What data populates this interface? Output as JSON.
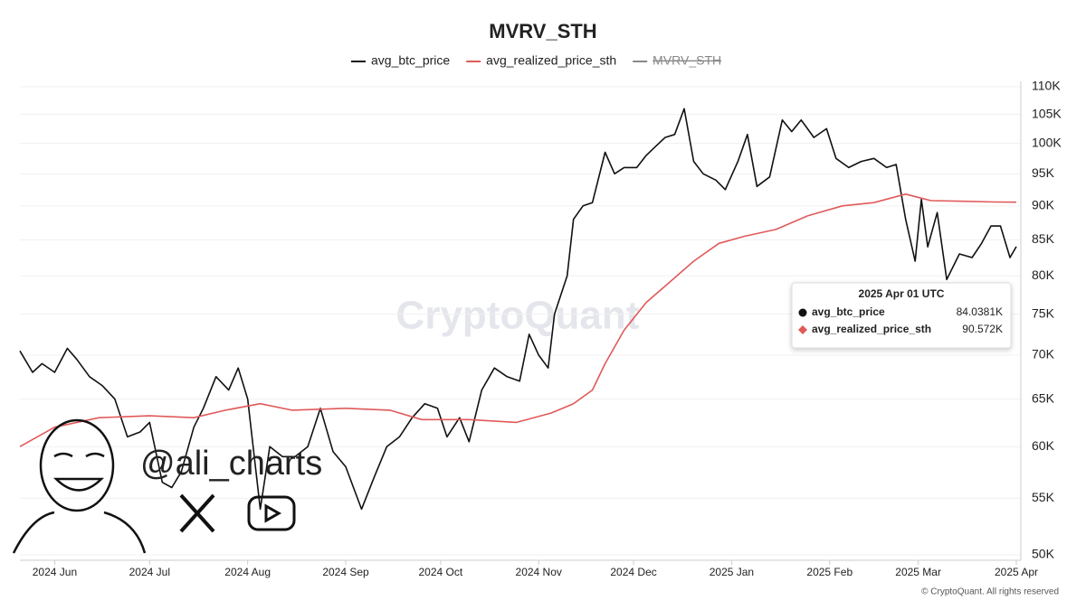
{
  "chart_data": {
    "type": "line",
    "title": "MVRV_STH",
    "watermark": "CryptoQuant",
    "handle": "@ali_charts",
    "footer": "© CryptoQuant. All rights reserved",
    "log_y": true,
    "grid": true,
    "xlim": [
      "2024-05-21",
      "2025-04-01"
    ],
    "xticks": [
      {
        "value": "2024-06-01",
        "label": "2024 Jun"
      },
      {
        "value": "2024-07-01",
        "label": "2024 Jul"
      },
      {
        "value": "2024-08-01",
        "label": "2024 Aug"
      },
      {
        "value": "2024-09-01",
        "label": "2024 Sep"
      },
      {
        "value": "2024-10-01",
        "label": "2024 Oct"
      },
      {
        "value": "2024-11-01",
        "label": "2024 Nov"
      },
      {
        "value": "2024-12-01",
        "label": "2024 Dec"
      },
      {
        "value": "2025-01-01",
        "label": "2025 Jan"
      },
      {
        "value": "2025-02-01",
        "label": "2025 Feb"
      },
      {
        "value": "2025-03-01",
        "label": "2025 Mar"
      },
      {
        "value": "2025-04-01",
        "label": "2025 Apr"
      }
    ],
    "ylim": [
      50000,
      110000
    ],
    "yticks": [
      {
        "value": 50000,
        "label": "50K"
      },
      {
        "value": 55000,
        "label": "55K"
      },
      {
        "value": 60000,
        "label": "60K"
      },
      {
        "value": 65000,
        "label": "65K"
      },
      {
        "value": 70000,
        "label": "70K"
      },
      {
        "value": 75000,
        "label": "75K"
      },
      {
        "value": 80000,
        "label": "80K"
      },
      {
        "value": 85000,
        "label": "85K"
      },
      {
        "value": 90000,
        "label": "90K"
      },
      {
        "value": 95000,
        "label": "95K"
      },
      {
        "value": 100000,
        "label": "100K"
      },
      {
        "value": 105000,
        "label": "105K"
      },
      {
        "value": 110000,
        "label": "110K"
      }
    ],
    "series": [
      {
        "name": "avg_btc_price",
        "color": "#111111",
        "x": [
          "2024-05-21",
          "2024-05-25",
          "2024-05-28",
          "2024-06-01",
          "2024-06-05",
          "2024-06-08",
          "2024-06-12",
          "2024-06-16",
          "2024-06-20",
          "2024-06-24",
          "2024-06-28",
          "2024-07-01",
          "2024-07-05",
          "2024-07-08",
          "2024-07-11",
          "2024-07-15",
          "2024-07-18",
          "2024-07-22",
          "2024-07-26",
          "2024-07-29",
          "2024-08-01",
          "2024-08-05",
          "2024-08-08",
          "2024-08-12",
          "2024-08-16",
          "2024-08-20",
          "2024-08-24",
          "2024-08-28",
          "2024-09-01",
          "2024-09-06",
          "2024-09-10",
          "2024-09-14",
          "2024-09-18",
          "2024-09-22",
          "2024-09-26",
          "2024-09-30",
          "2024-10-03",
          "2024-10-07",
          "2024-10-10",
          "2024-10-14",
          "2024-10-18",
          "2024-10-22",
          "2024-10-26",
          "2024-10-29",
          "2024-11-01",
          "2024-11-04",
          "2024-11-06",
          "2024-11-10",
          "2024-11-12",
          "2024-11-15",
          "2024-11-18",
          "2024-11-22",
          "2024-11-25",
          "2024-11-28",
          "2024-12-02",
          "2024-12-05",
          "2024-12-08",
          "2024-12-11",
          "2024-12-14",
          "2024-12-17",
          "2024-12-20",
          "2024-12-23",
          "2024-12-27",
          "2024-12-30",
          "2025-01-03",
          "2025-01-06",
          "2025-01-09",
          "2025-01-13",
          "2025-01-17",
          "2025-01-20",
          "2025-01-23",
          "2025-01-27",
          "2025-01-31",
          "2025-02-03",
          "2025-02-07",
          "2025-02-11",
          "2025-02-15",
          "2025-02-19",
          "2025-02-22",
          "2025-02-25",
          "2025-02-28",
          "2025-03-02",
          "2025-03-04",
          "2025-03-07",
          "2025-03-10",
          "2025-03-14",
          "2025-03-18",
          "2025-03-21",
          "2025-03-24",
          "2025-03-27",
          "2025-03-30",
          "2025-04-01"
        ],
        "values": [
          70500,
          68000,
          69000,
          68000,
          70800,
          69500,
          67500,
          66500,
          65000,
          61000,
          61500,
          62500,
          56500,
          56000,
          57500,
          62000,
          64000,
          67500,
          66000,
          68500,
          65000,
          54000,
          60000,
          59000,
          59000,
          60000,
          64000,
          59500,
          58000,
          54000,
          57000,
          60000,
          61000,
          63000,
          64500,
          64000,
          61000,
          63000,
          60500,
          66000,
          68500,
          67500,
          67000,
          72500,
          70000,
          68500,
          75000,
          80000,
          88000,
          90000,
          90500,
          98500,
          95000,
          96000,
          96000,
          98000,
          99500,
          101000,
          101500,
          106000,
          97000,
          95000,
          94000,
          92500,
          97000,
          101500,
          93000,
          94500,
          104000,
          102000,
          104000,
          101000,
          102500,
          97500,
          96000,
          97000,
          97500,
          96000,
          96500,
          88000,
          82000,
          91000,
          84000,
          89000,
          79500,
          83000,
          82500,
          84500,
          87000,
          87000,
          82500,
          84038.1
        ]
      },
      {
        "name": "avg_realized_price_sth",
        "color": "#e05a5a",
        "x": [
          "2024-05-21",
          "2024-06-01",
          "2024-06-15",
          "2024-07-01",
          "2024-07-15",
          "2024-07-25",
          "2024-08-05",
          "2024-08-15",
          "2024-09-01",
          "2024-09-15",
          "2024-09-25",
          "2024-10-10",
          "2024-10-25",
          "2024-11-05",
          "2024-11-12",
          "2024-11-18",
          "2024-11-22",
          "2024-11-28",
          "2024-12-05",
          "2024-12-12",
          "2024-12-20",
          "2024-12-28",
          "2025-01-05",
          "2025-01-15",
          "2025-01-25",
          "2025-02-05",
          "2025-02-15",
          "2025-02-25",
          "2025-03-05",
          "2025-03-15",
          "2025-03-25",
          "2025-04-01"
        ],
        "values": [
          60000,
          62000,
          63000,
          63200,
          63000,
          63800,
          64500,
          63800,
          64000,
          63800,
          62800,
          62800,
          62500,
          63500,
          64500,
          66000,
          69000,
          73000,
          76500,
          79000,
          82000,
          84500,
          85500,
          86500,
          88500,
          90000,
          90500,
          91800,
          90800,
          90700,
          90600,
          90572
        ]
      },
      {
        "name": "MVRV_STH",
        "color": "#888888",
        "hidden": true
      }
    ],
    "tooltip": {
      "date": "2025 Apr 01 UTC",
      "entries": [
        {
          "name": "avg_btc_price",
          "value": 84038.1,
          "value_label": "84.0381K",
          "color": "#111111"
        },
        {
          "name": "avg_realized_price_sth",
          "value": 90572,
          "value_label": "90.572K",
          "color": "#e05a5a"
        }
      ]
    }
  }
}
